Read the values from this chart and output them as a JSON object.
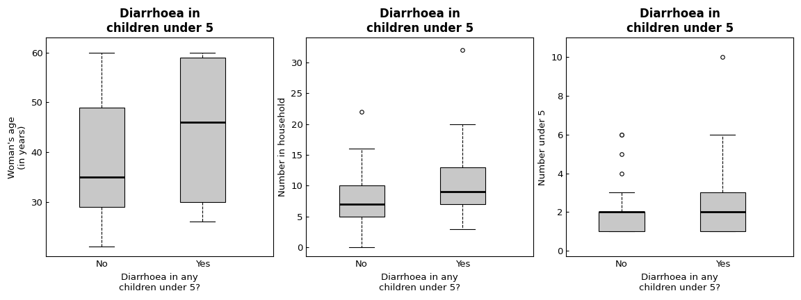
{
  "title": "Diarrhoea in\nchildren under 5",
  "plots": [
    {
      "ylabel": "Woman's age\n(in years)",
      "xlabel": "Diarrhoea in any\nchildren under 5?",
      "categories": [
        "No",
        "Yes"
      ],
      "no": {
        "q1": 29,
        "q2": 35,
        "q3": 49,
        "wlo": 21,
        "whi": 60,
        "outliers": []
      },
      "yes": {
        "q1": 30,
        "q2": 46,
        "q3": 59,
        "wlo": 26,
        "whi": 60,
        "outliers": []
      },
      "ylim": [
        19,
        63
      ],
      "yticks": [
        30,
        40,
        50,
        60
      ]
    },
    {
      "ylabel": "Number in household",
      "xlabel": "Diarrhoea in any\nchildren under 5?",
      "categories": [
        "No",
        "Yes"
      ],
      "no": {
        "q1": 5,
        "q2": 7,
        "q3": 10,
        "wlo": 0,
        "whi": 16,
        "outliers": [
          22
        ]
      },
      "yes": {
        "q1": 7,
        "q2": 9,
        "q3": 13,
        "wlo": 3,
        "whi": 20,
        "outliers": [
          32
        ]
      },
      "ylim": [
        -1.5,
        34
      ],
      "yticks": [
        0,
        5,
        10,
        15,
        20,
        25,
        30
      ]
    },
    {
      "ylabel": "Number under 5",
      "xlabel": "Diarrhoea in any\nchildren under 5?",
      "categories": [
        "No",
        "Yes"
      ],
      "no": {
        "q1": 1,
        "q2": 2,
        "q3": 2,
        "wlo": 1,
        "whi": 3,
        "outliers": [
          4,
          5,
          6,
          6
        ]
      },
      "yes": {
        "q1": 1,
        "q2": 2,
        "q3": 3,
        "wlo": 1,
        "whi": 6,
        "outliers": [
          10
        ]
      },
      "ylim": [
        -0.3,
        11
      ],
      "yticks": [
        0,
        2,
        4,
        6,
        8,
        10
      ]
    }
  ],
  "box_color": "#c8c8c8",
  "median_color": "#000000",
  "whisker_color": "#000000",
  "outlier_color": "#000000",
  "title_fontsize": 12,
  "label_fontsize": 9.5,
  "tick_fontsize": 9.5,
  "box_width": 0.45
}
